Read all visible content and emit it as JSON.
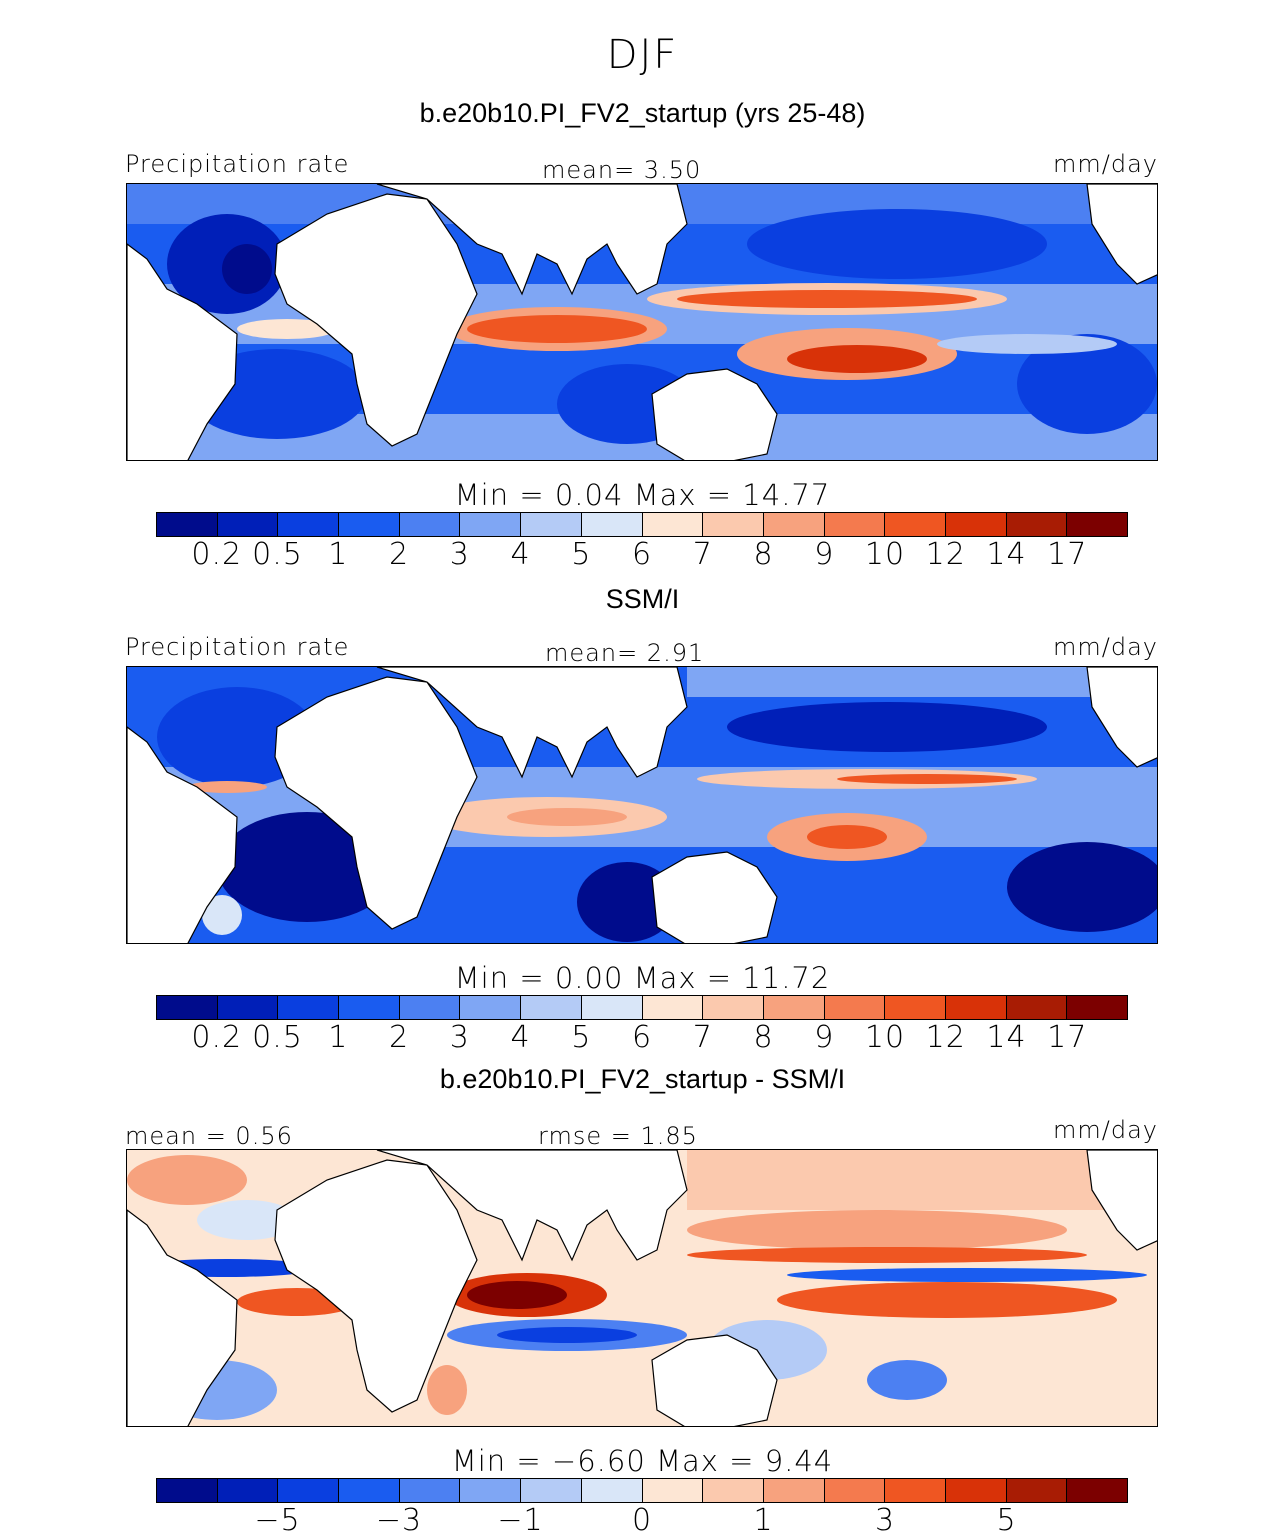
{
  "figure": {
    "title": "DJF"
  },
  "colors": {
    "seq": [
      "#000c8c",
      "#001fb8",
      "#0a3fe0",
      "#1a5cf0",
      "#4c80f2",
      "#7fa6f4",
      "#b4cbf6",
      "#d9e6f8",
      "#fde6d4",
      "#fbc9ae",
      "#f7a27e",
      "#f47a4e",
      "#ef5622",
      "#d83208",
      "#a81c04",
      "#7c0000"
    ],
    "land": "#ffffff",
    "coast": "#000000"
  },
  "panels": [
    {
      "title": "b.e20b10.PI_FV2_startup (yrs 25-48)",
      "left_header": "Precipitation rate",
      "center_header": "mean=   3.50",
      "right_header": "mm/day",
      "minmax": "Min =    0.04 Max =   14.77",
      "tick_labels": [
        "0.2",
        "0.5",
        "1",
        "2",
        "3",
        "4",
        "5",
        "6",
        "7",
        "8",
        "9",
        "10",
        "12",
        "14",
        "17"
      ]
    },
    {
      "title": "SSM/I",
      "left_header": "Precipitation rate",
      "center_header": "mean=   2.91",
      "right_header": "mm/day",
      "minmax": "Min =    0.00 Max =   11.72",
      "tick_labels": [
        "0.2",
        "0.5",
        "1",
        "2",
        "3",
        "4",
        "5",
        "6",
        "7",
        "8",
        "9",
        "10",
        "12",
        "14",
        "17"
      ]
    },
    {
      "title": "b.e20b10.PI_FV2_startup - SSM/I",
      "left_header": "mean =   0.56",
      "center_header": "rmse =   1.85",
      "right_header": "mm/day",
      "minmax": "Min = −6.60 Max =   9.44",
      "tick_labels": [
        "−5",
        "−3",
        "−1",
        "0",
        "1",
        "3",
        "5"
      ]
    }
  ],
  "chart_data": {
    "type": "heatmap",
    "title": "DJF",
    "units": "mm/day",
    "panels": [
      {
        "name": "b.e20b10.PI_FV2_startup (yrs 25-48)",
        "field": "Precipitation rate",
        "mean": 3.5,
        "min": 0.04,
        "max": 14.77,
        "levels": [
          0.2,
          0.5,
          1,
          2,
          3,
          4,
          5,
          6,
          7,
          8,
          9,
          10,
          12,
          14,
          17
        ]
      },
      {
        "name": "SSM/I",
        "field": "Precipitation rate",
        "mean": 2.91,
        "min": 0.0,
        "max": 11.72,
        "levels": [
          0.2,
          0.5,
          1,
          2,
          3,
          4,
          5,
          6,
          7,
          8,
          9,
          10,
          12,
          14,
          17
        ]
      },
      {
        "name": "b.e20b10.PI_FV2_startup - SSM/I",
        "mean": 0.56,
        "rmse": 1.85,
        "min": -6.6,
        "max": 9.44,
        "levels": [
          -5,
          -3,
          -1,
          0,
          1,
          3,
          5
        ]
      }
    ]
  }
}
